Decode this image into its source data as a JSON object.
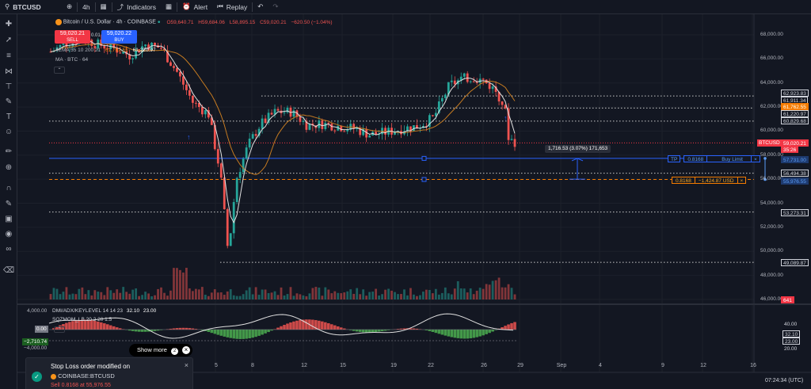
{
  "topbar": {
    "symbol": "BTCUSD",
    "interval": "4h",
    "indicators_label": "Indicators",
    "alert_label": "Alert",
    "replay_label": "Replay"
  },
  "legend": {
    "title": "Bitcoin / U.S. Dollar · 4h · COINBASE",
    "open": "O59,640.71",
    "high": "H59,684.06",
    "low": "L58,895.15",
    "close": "C59,020.21",
    "change": "−620.50 (−1.04%)",
    "ema_label": "4EMA 55 10 200 21",
    "ema_v1": "61,762.55",
    "ema_v2": "61,220.97",
    "ma_label": "MA · BTC · 64"
  },
  "trade": {
    "sell_price": "59,020.21",
    "sell_label": "SELL",
    "spread": "0.01",
    "buy_price": "59,020.22",
    "buy_label": "BUY"
  },
  "price_axis": {
    "labels": [
      "68,000.00",
      "66,000.00",
      "64,000.00",
      "62,000.00",
      "60,000.00",
      "58,000.00",
      "56,000.00",
      "54,000.00",
      "52,000.00",
      "50,000.00",
      "48,000.00",
      "46,000.00"
    ],
    "tags": [
      {
        "text": "62,923.83",
        "bg": "#131722",
        "fg": "#d1d4dc"
      },
      {
        "text": "61,911.34",
        "bg": "#131722",
        "fg": "#d1d4dc"
      },
      {
        "text": "61,762.55",
        "bg": "#f57c00",
        "fg": "#ffffff"
      },
      {
        "text": "61,220.97",
        "bg": "#131722",
        "fg": "#d1d4dc"
      },
      {
        "text": "60,829.68",
        "bg": "#131722",
        "fg": "#d1d4dc"
      },
      {
        "text": "59,020.21",
        "bg": "#f23645",
        "fg": "#ffffff"
      },
      {
        "text": "35:26",
        "bg": "#f23645",
        "fg": "#ffffff"
      },
      {
        "text": "57,731.00",
        "bg": "#1e3a6e",
        "fg": "#5b9cf6"
      },
      {
        "text": "56,494.38",
        "bg": "#131722",
        "fg": "#d1d4dc"
      },
      {
        "text": "55,976.55",
        "bg": "#1e3a6e",
        "fg": "#5b9cf6"
      },
      {
        "text": "53,273.31",
        "bg": "#131722",
        "fg": "#d1d4dc"
      },
      {
        "text": "49,089.87",
        "bg": "#131722",
        "fg": "#d1d4dc"
      },
      {
        "text": "641",
        "bg": "#f23645",
        "fg": "#ffffff"
      }
    ],
    "symbol_tag": "BTCUSD"
  },
  "orders": {
    "tp_label": "TP",
    "tp_qty": "0.8168",
    "tp_type": "Buy Limit",
    "sl_qty": "0.8168",
    "sl_pnl": "−1,424.87 USD",
    "measure": "1,716.53 (3.07%) 171,653"
  },
  "indicator": {
    "dmi_label": "DMI/ADX/KEYLEVEL 14 14 23",
    "dmi_v1": "32.10",
    "dmi_v2": "23.00",
    "sqz_label": "SQZMOM_LB 20 2 20 1.5",
    "sqz_value": "−2,710.74",
    "left_top": "4,000.00",
    "left_mid": "0.00",
    "left_bot": "−4,000.00",
    "right_labels": [
      "40.00",
      "32.10",
      "23.00",
      "20.00"
    ]
  },
  "time_axis": {
    "labels": [
      "5",
      "8",
      "12",
      "15",
      "19",
      "22",
      "26",
      "29",
      "Sep",
      "4",
      "9",
      "12",
      "16"
    ],
    "clock": "07:24:34 (UTC)"
  },
  "toast": {
    "title": "Stop Loss order modified on",
    "symbol": "COINBASE:BTCUSD",
    "detail": "Sell 0.8168 at 55,976.55"
  },
  "show_more": {
    "label": "Show more",
    "count": "2"
  },
  "colors": {
    "up": "#26a69a",
    "down": "#ef5350",
    "ema_orange": "#c47a21",
    "ma_white": "#e0e0e0",
    "blue": "#2962ff"
  }
}
